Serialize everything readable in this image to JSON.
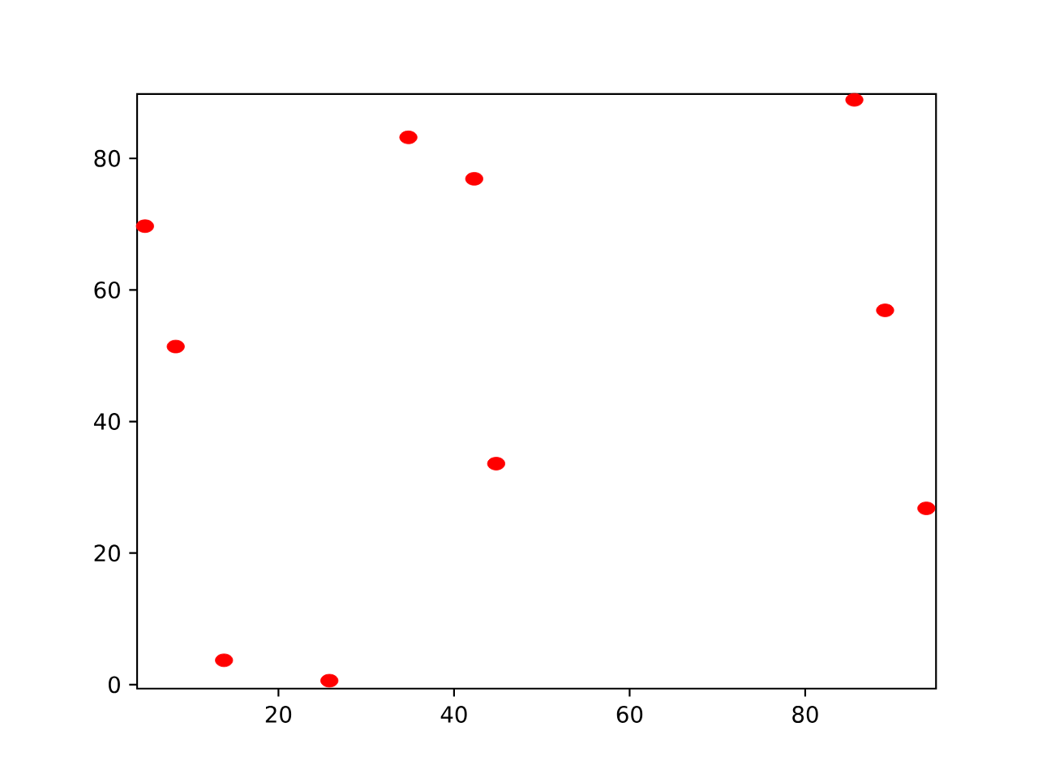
{
  "chart_data": {
    "type": "scatter",
    "x": [
      4.8,
      8.3,
      13.8,
      25.8,
      34.8,
      42.3,
      44.8,
      85.6,
      89.1,
      93.8
    ],
    "values": [
      69.7,
      51.4,
      3.7,
      0.6,
      83.2,
      76.9,
      33.6,
      88.9,
      56.9,
      26.8
    ],
    "color": "#ff0000",
    "marker": "circle",
    "xlim": [
      3.9,
      94.9
    ],
    "ylim": [
      -0.6,
      89.8
    ],
    "xticks": [
      20,
      40,
      60,
      80
    ],
    "yticks": [
      0,
      20,
      40,
      60,
      80
    ]
  }
}
